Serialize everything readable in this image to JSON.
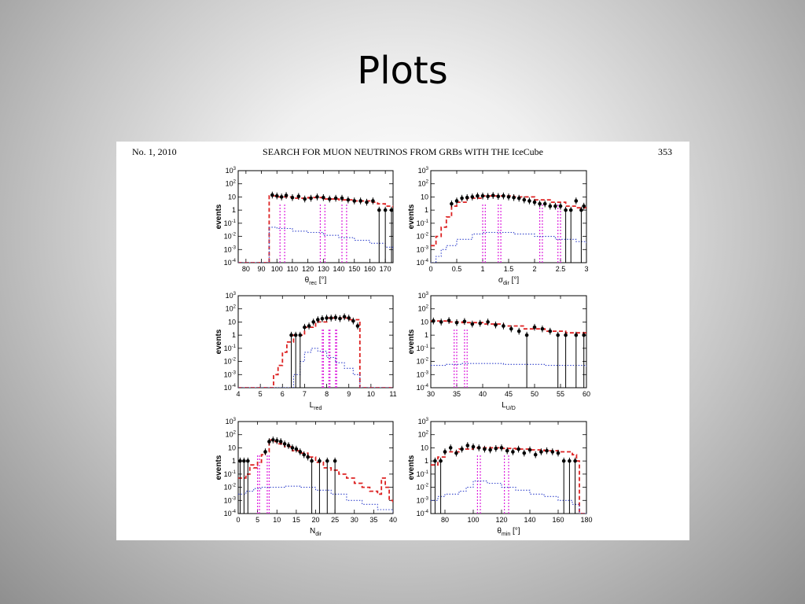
{
  "slide": {
    "title": "Plots"
  },
  "paper": {
    "header_left": "No. 1, 2010",
    "header_center": "SEARCH FOR MUON NEUTRINOS FROM GRBs WITH THE IceCube",
    "header_right": "353"
  },
  "colors": {
    "data": "#000000",
    "background": "#dd2222",
    "signal": "#3344cc",
    "cuts": "#dd22dd"
  },
  "y_axis": {
    "label": "events",
    "scale": "log",
    "range": [
      0.0001,
      1000
    ],
    "ticks": [
      "10-4",
      "10-3",
      "10-2",
      "10-1",
      "1",
      "10",
      "102",
      "103"
    ]
  },
  "chart_data": [
    {
      "type": "line",
      "id": "theta_rec",
      "xlabel": "θrec [°]",
      "xlabel_main": "θ",
      "xlabel_sub": "rec",
      "xlabel_unit": " [°]",
      "xlim": [
        75,
        175
      ],
      "xticks": [
        80,
        90,
        100,
        110,
        120,
        130,
        140,
        150,
        160,
        170
      ],
      "ylabel": "events",
      "ylim": [
        0.0001,
        1000
      ],
      "y_scale": "log",
      "cuts": [
        102,
        105,
        128,
        131,
        142,
        145
      ],
      "series": [
        {
          "role": "background",
          "style": "dashed",
          "x": [
            75,
            95,
            95,
            100,
            110,
            120,
            130,
            140,
            150,
            160,
            165,
            170,
            175
          ],
          "y": [
            0.0001,
            0.0001,
            12,
            10,
            8,
            9,
            7,
            6,
            5,
            4,
            3,
            2,
            1.5
          ]
        },
        {
          "role": "signal",
          "style": "dotted",
          "x": [
            75,
            95,
            95,
            100,
            110,
            120,
            130,
            140,
            150,
            160,
            170,
            175
          ],
          "y": [
            0.0001,
            0.0001,
            0.05,
            0.04,
            0.025,
            0.02,
            0.012,
            0.008,
            0.005,
            0.003,
            0.0015,
            0.001
          ]
        },
        {
          "role": "data",
          "style": "points",
          "x": [
            97,
            100,
            103,
            106,
            110,
            114,
            118,
            122,
            126,
            130,
            134,
            138,
            142,
            146,
            150,
            154,
            158,
            162,
            166,
            170,
            174
          ],
          "y": [
            14,
            12,
            10,
            13,
            9,
            11,
            7,
            8,
            10,
            9,
            7,
            8,
            8,
            6,
            5,
            5,
            4,
            5,
            1,
            1,
            1
          ]
        }
      ]
    },
    {
      "type": "line",
      "id": "sigma_dir",
      "xlabel": "σdir [°]",
      "xlabel_main": "σ",
      "xlabel_sub": "dir",
      "xlabel_unit": " [°]",
      "xlim": [
        0,
        3
      ],
      "xticks": [
        0,
        0.5,
        1,
        1.5,
        2,
        2.5,
        3
      ],
      "ylabel": "events",
      "ylim": [
        0.0001,
        1000
      ],
      "y_scale": "log",
      "cuts": [
        1.0,
        1.05,
        1.3,
        1.35,
        2.1,
        2.15,
        2.45,
        2.5
      ],
      "series": [
        {
          "role": "background",
          "style": "dashed",
          "x": [
            0,
            0.1,
            0.2,
            0.3,
            0.4,
            0.5,
            0.7,
            1.0,
            1.3,
            1.6,
            2.0,
            2.3,
            2.6,
            2.8,
            3.0
          ],
          "y": [
            0.002,
            0.01,
            0.05,
            0.3,
            2,
            4,
            8,
            12,
            12,
            10,
            6,
            4,
            2,
            1.5,
            1
          ]
        },
        {
          "role": "signal",
          "style": "dotted",
          "x": [
            0,
            0.1,
            0.2,
            0.3,
            0.5,
            0.8,
            1.0,
            1.3,
            1.6,
            2.0,
            2.4,
            2.8,
            3.0
          ],
          "y": [
            0.0001,
            0.0003,
            0.001,
            0.002,
            0.006,
            0.015,
            0.02,
            0.02,
            0.015,
            0.01,
            0.006,
            0.004,
            0.003
          ]
        },
        {
          "role": "data",
          "style": "points",
          "x": [
            0.4,
            0.5,
            0.6,
            0.7,
            0.8,
            0.9,
            1.0,
            1.1,
            1.2,
            1.3,
            1.4,
            1.5,
            1.6,
            1.7,
            1.8,
            1.9,
            2.0,
            2.1,
            2.2,
            2.3,
            2.4,
            2.5,
            2.6,
            2.7,
            2.8,
            2.9,
            2.95
          ],
          "y": [
            3,
            5,
            8,
            9,
            10,
            12,
            12,
            11,
            13,
            11,
            12,
            10,
            9,
            8,
            6,
            5,
            4,
            3,
            3,
            2,
            2,
            2,
            1,
            1,
            5,
            1,
            2
          ]
        }
      ]
    },
    {
      "type": "line",
      "id": "l_red",
      "xlabel": "Lred",
      "xlabel_main": "L",
      "xlabel_sub": "red",
      "xlabel_unit": "",
      "xlim": [
        4,
        11
      ],
      "xticks": [
        4,
        5,
        6,
        7,
        8,
        9,
        10,
        11
      ],
      "ylabel": "events",
      "ylim": [
        0.0001,
        1000
      ],
      "y_scale": "log",
      "cuts": [
        7.8,
        7.85,
        8.1,
        8.15,
        8.4,
        8.45
      ],
      "series": [
        {
          "role": "background",
          "style": "dashed",
          "x": [
            4,
            5.5,
            5.6,
            5.8,
            6.0,
            6.2,
            6.5,
            7.0,
            7.5,
            8.0,
            8.5,
            9.0,
            9.5,
            9.5,
            11
          ],
          "y": [
            0.0001,
            0.0001,
            0.001,
            0.005,
            0.05,
            0.3,
            1,
            4,
            10,
            20,
            20,
            15,
            8,
            0.0001,
            0.0001
          ]
        },
        {
          "role": "signal",
          "style": "dotted",
          "x": [
            4,
            6.3,
            6.5,
            6.8,
            7.0,
            7.3,
            7.6,
            8.0,
            8.4,
            8.8,
            9.2,
            9.5,
            9.5,
            11
          ],
          "y": [
            0.0001,
            0.0001,
            0.001,
            0.01,
            0.05,
            0.1,
            0.06,
            0.02,
            0.008,
            0.003,
            0.001,
            0.0005,
            0.0001,
            0.0001
          ]
        },
        {
          "role": "data",
          "style": "points",
          "x": [
            6.4,
            6.6,
            6.8,
            7.0,
            7.2,
            7.4,
            7.6,
            7.8,
            8.0,
            8.2,
            8.4,
            8.6,
            8.8,
            9.0,
            9.2,
            9.4
          ],
          "y": [
            1,
            1,
            1,
            4,
            5,
            10,
            15,
            18,
            20,
            20,
            22,
            18,
            25,
            20,
            12,
            5
          ]
        }
      ]
    },
    {
      "type": "line",
      "id": "l_ud",
      "xlabel": "LU/D",
      "xlabel_main": "L",
      "xlabel_sub": "U/D",
      "xlabel_unit": "",
      "xlim": [
        30,
        60
      ],
      "xticks": [
        30,
        35,
        40,
        45,
        50,
        55,
        60
      ],
      "ylabel": "events",
      "ylim": [
        0.0001,
        1000
      ],
      "y_scale": "log",
      "cuts": [
        34.5,
        35,
        36.5,
        37
      ],
      "series": [
        {
          "role": "background",
          "style": "dashed",
          "x": [
            30,
            33,
            36,
            40,
            44,
            48,
            52,
            56,
            60
          ],
          "y": [
            12,
            10,
            9,
            7,
            5,
            3,
            2,
            1.5,
            1
          ]
        },
        {
          "role": "signal",
          "style": "dotted",
          "x": [
            30,
            33,
            36,
            40,
            44,
            48,
            52,
            56,
            60
          ],
          "y": [
            0.005,
            0.006,
            0.007,
            0.007,
            0.006,
            0.006,
            0.005,
            0.005,
            0.004
          ]
        },
        {
          "role": "data",
          "style": "points",
          "x": [
            30.5,
            32,
            33.5,
            35,
            36.5,
            38,
            39.5,
            41,
            42.5,
            44,
            45.5,
            47,
            48.5,
            50,
            51.5,
            53,
            54.5,
            56,
            58,
            59.5
          ],
          "y": [
            12,
            10,
            13,
            9,
            11,
            7,
            8,
            10,
            6,
            5,
            3,
            2,
            1,
            4,
            3,
            2,
            1,
            1,
            1,
            1
          ]
        }
      ]
    },
    {
      "type": "line",
      "id": "n_dir",
      "xlabel": "Ndir",
      "xlabel_main": "N",
      "xlabel_sub": "dir",
      "xlabel_unit": "",
      "xlim": [
        0,
        40
      ],
      "xticks": [
        0,
        5,
        10,
        15,
        20,
        25,
        30,
        35,
        40
      ],
      "ylabel": "events",
      "ylim": [
        0.0001,
        1000
      ],
      "y_scale": "log",
      "cuts": [
        5,
        5.5,
        7.5,
        8
      ],
      "series": [
        {
          "role": "background",
          "style": "dashed",
          "x": [
            0,
            1,
            2,
            3,
            4,
            5,
            6,
            7,
            8,
            9,
            10,
            12,
            14,
            16,
            18,
            20,
            22,
            24,
            26,
            28,
            30,
            32,
            34,
            36,
            37,
            38,
            39,
            40
          ],
          "y": [
            0.05,
            0.05,
            0.1,
            0.5,
            0.3,
            0.8,
            3,
            5,
            40,
            30,
            20,
            12,
            6,
            4,
            2,
            0.8,
            0.3,
            0.2,
            0.1,
            0.05,
            0.02,
            0.01,
            0.005,
            0.003,
            0.05,
            0.01,
            0.001,
            0.0005
          ]
        },
        {
          "role": "signal",
          "style": "dotted",
          "x": [
            0,
            2,
            4,
            6,
            8,
            10,
            12,
            14,
            16,
            20,
            24,
            28,
            32,
            36,
            40
          ],
          "y": [
            0.003,
            0.005,
            0.008,
            0.01,
            0.01,
            0.01,
            0.012,
            0.012,
            0.01,
            0.006,
            0.003,
            0.001,
            0.0005,
            0.0002,
            0.0001
          ]
        },
        {
          "role": "data",
          "style": "points",
          "x": [
            0.5,
            1.5,
            2.5,
            7,
            8,
            9,
            10,
            11,
            12,
            13,
            14,
            15,
            16,
            17,
            18,
            19,
            21,
            23,
            25
          ],
          "y": [
            1,
            1,
            1,
            5,
            30,
            40,
            35,
            30,
            20,
            15,
            10,
            8,
            5,
            3,
            2,
            1,
            1,
            1,
            1
          ]
        }
      ]
    },
    {
      "type": "line",
      "id": "theta_min",
      "xlabel": "θmin [°]",
      "xlabel_main": "θ",
      "xlabel_sub": "min",
      "xlabel_unit": " [°]",
      "xlim": [
        70,
        180
      ],
      "xticks": [
        80,
        100,
        120,
        140,
        160,
        180
      ],
      "ylabel": "events",
      "ylim": [
        0.0001,
        1000
      ],
      "y_scale": "log",
      "cuts": [
        103,
        105,
        122,
        125
      ],
      "series": [
        {
          "role": "background",
          "style": "dashed",
          "x": [
            70,
            75,
            80,
            90,
            100,
            110,
            120,
            130,
            140,
            150,
            160,
            170,
            173,
            175,
            180
          ],
          "y": [
            0.5,
            2,
            5,
            8,
            10,
            10,
            9,
            8,
            7,
            6,
            5,
            3,
            1,
            0.0001,
            0.0001
          ]
        },
        {
          "role": "signal",
          "style": "dotted",
          "x": [
            70,
            75,
            80,
            90,
            95,
            100,
            110,
            120,
            130,
            140,
            150,
            160,
            170,
            175,
            180
          ],
          "y": [
            0.001,
            0.002,
            0.003,
            0.005,
            0.01,
            0.03,
            0.02,
            0.01,
            0.006,
            0.003,
            0.002,
            0.001,
            0.0005,
            0.0001,
            0.0001
          ]
        },
        {
          "role": "data",
          "style": "points",
          "x": [
            73,
            77,
            80,
            84,
            88,
            92,
            96,
            100,
            104,
            108,
            112,
            116,
            120,
            124,
            128,
            132,
            136,
            140,
            144,
            148,
            152,
            156,
            160,
            164,
            168,
            172
          ],
          "y": [
            1,
            1,
            5,
            10,
            4,
            8,
            15,
            12,
            10,
            8,
            7,
            9,
            10,
            6,
            5,
            8,
            4,
            7,
            3,
            5,
            6,
            5,
            4,
            1,
            1,
            1
          ]
        }
      ]
    }
  ]
}
